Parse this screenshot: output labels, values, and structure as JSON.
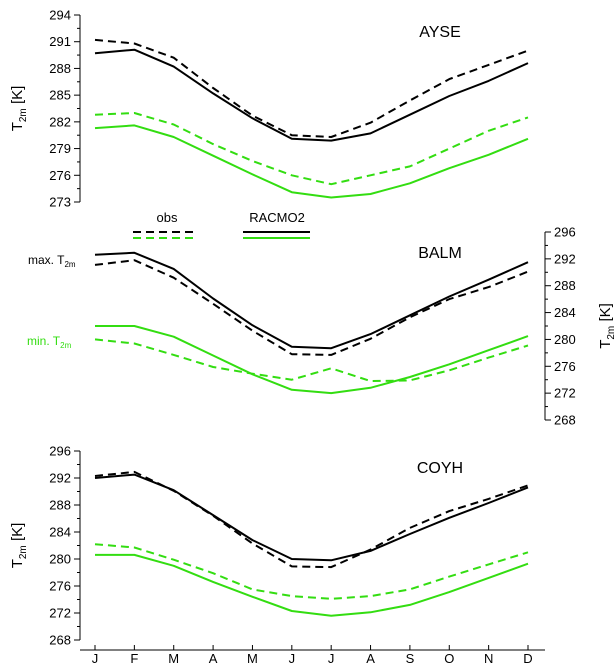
{
  "chart_data": [
    {
      "type": "line",
      "title": "AYSE",
      "ylabel": "T_2m [K]",
      "ylabel_main": "T",
      "ylabel_sub": "2m",
      "ylabel_unit": "[K]",
      "yaxis_side": "left",
      "ylim": [
        273,
        294
      ],
      "yticks": [
        273,
        276,
        279,
        282,
        285,
        288,
        291,
        294
      ],
      "x": [
        "J",
        "F",
        "M",
        "A",
        "M",
        "J",
        "J",
        "A",
        "S",
        "O",
        "N",
        "D"
      ],
      "series": [
        {
          "role": "max_obs",
          "color": "#000000",
          "dashed": true,
          "values": [
            291.2,
            290.8,
            289.2,
            285.8,
            282.7,
            280.5,
            280.3,
            281.9,
            284.4,
            286.8,
            288.4,
            290.0
          ]
        },
        {
          "role": "max_racmo",
          "color": "#000000",
          "dashed": false,
          "values": [
            289.7,
            290.1,
            288.2,
            285.2,
            282.4,
            280.1,
            279.9,
            280.7,
            282.8,
            284.9,
            286.6,
            288.6
          ]
        },
        {
          "role": "min_obs",
          "color": "#33dd11",
          "dashed": true,
          "values": [
            282.8,
            283.0,
            281.7,
            279.5,
            277.6,
            276.0,
            275.0,
            276.0,
            277.0,
            279.0,
            281.0,
            282.5
          ]
        },
        {
          "role": "min_racmo",
          "color": "#33dd11",
          "dashed": false,
          "values": [
            281.3,
            281.6,
            280.3,
            278.2,
            276.1,
            274.1,
            273.5,
            273.9,
            275.1,
            276.8,
            278.3,
            280.1
          ]
        }
      ]
    },
    {
      "type": "line",
      "title": "BALM",
      "ylabel": "T_2m [K]",
      "ylabel_main": "T",
      "ylabel_sub": "2m",
      "ylabel_unit": "[K]",
      "yaxis_side": "right",
      "ylim": [
        268,
        296
      ],
      "yticks": [
        268,
        272,
        276,
        280,
        284,
        288,
        292,
        296
      ],
      "x": [
        "J",
        "F",
        "M",
        "A",
        "M",
        "J",
        "J",
        "A",
        "S",
        "O",
        "N",
        "D"
      ],
      "series": [
        {
          "role": "max_obs",
          "color": "#000000",
          "dashed": true,
          "values": [
            291.1,
            291.8,
            289.2,
            285.3,
            281.3,
            277.8,
            277.7,
            280.1,
            283.3,
            286.0,
            287.8,
            290.1
          ]
        },
        {
          "role": "max_racmo",
          "color": "#000000",
          "dashed": false,
          "values": [
            292.6,
            292.9,
            290.5,
            286.1,
            282.1,
            278.9,
            278.7,
            280.8,
            283.6,
            286.4,
            288.9,
            291.5
          ]
        },
        {
          "role": "min_obs",
          "color": "#33dd11",
          "dashed": true,
          "values": [
            280.0,
            279.4,
            277.7,
            275.9,
            274.9,
            274.0,
            275.7,
            273.8,
            273.9,
            275.4,
            277.3,
            279.1
          ]
        },
        {
          "role": "min_racmo",
          "color": "#33dd11",
          "dashed": false,
          "values": [
            282.0,
            282.0,
            280.4,
            277.6,
            274.8,
            272.5,
            272.0,
            272.8,
            274.4,
            276.3,
            278.4,
            280.5
          ]
        }
      ]
    },
    {
      "type": "line",
      "title": "COYH",
      "ylabel": "T_2m [K]",
      "ylabel_main": "T",
      "ylabel_sub": "2m",
      "ylabel_unit": "[K]",
      "yaxis_side": "left",
      "ylim": [
        268,
        296
      ],
      "yticks": [
        268,
        272,
        276,
        280,
        284,
        288,
        292,
        296
      ],
      "x": [
        "J",
        "F",
        "M",
        "A",
        "M",
        "J",
        "J",
        "A",
        "S",
        "O",
        "N",
        "D"
      ],
      "series": [
        {
          "role": "max_obs",
          "color": "#000000",
          "dashed": true,
          "values": [
            292.3,
            292.9,
            290.1,
            286.4,
            282.3,
            278.9,
            278.8,
            281.4,
            284.6,
            287.1,
            288.9,
            290.9
          ]
        },
        {
          "role": "max_racmo",
          "color": "#000000",
          "dashed": false,
          "values": [
            292.0,
            292.5,
            290.2,
            286.5,
            282.8,
            280.0,
            279.8,
            281.2,
            283.7,
            286.1,
            288.3,
            290.6
          ]
        },
        {
          "role": "min_obs",
          "color": "#33dd11",
          "dashed": true,
          "values": [
            282.2,
            281.7,
            279.9,
            277.9,
            275.5,
            274.5,
            274.1,
            274.5,
            275.5,
            277.4,
            279.2,
            281.0
          ]
        },
        {
          "role": "min_racmo",
          "color": "#33dd11",
          "dashed": false,
          "values": [
            280.6,
            280.6,
            279.0,
            276.6,
            274.4,
            272.3,
            271.6,
            272.1,
            273.2,
            275.1,
            277.2,
            279.3
          ]
        }
      ]
    }
  ],
  "legend": {
    "obs_label": "obs",
    "racmo_label": "RACMO2",
    "max_label_main": "max. T",
    "max_label_sub": "2m",
    "min_label_main": "min. T",
    "min_label_sub": "2m"
  },
  "x_tick_labels": [
    "J",
    "F",
    "M",
    "A",
    "M",
    "J",
    "J",
    "A",
    "S",
    "O",
    "N",
    "D"
  ],
  "colors": {
    "obs_racmo_max": "#000000",
    "min": "#33dd11"
  }
}
